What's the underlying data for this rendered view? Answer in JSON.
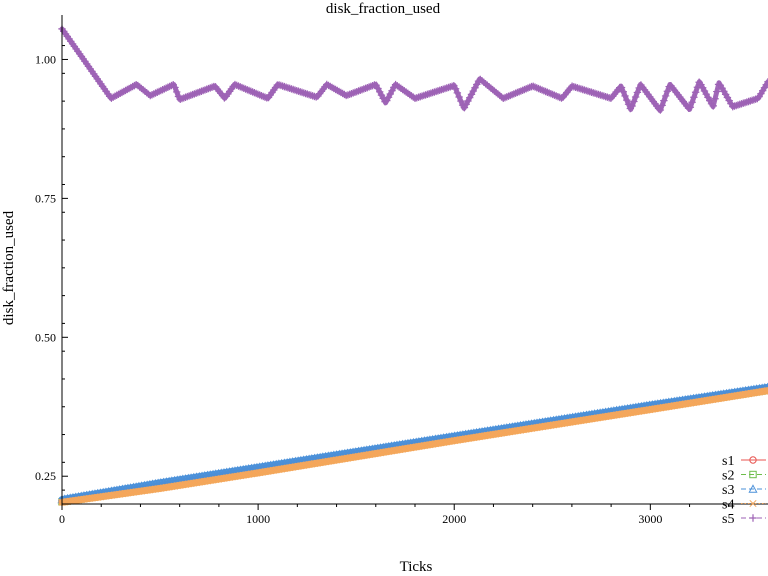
{
  "chart_data": {
    "type": "line",
    "title": "disk_fraction_used",
    "xlabel": "Ticks",
    "ylabel": "disk_fraction_used",
    "xlim": [
      0,
      3600
    ],
    "ylim": [
      0.2,
      1.08
    ],
    "xticks": [
      {
        "value": 0,
        "label": "0"
      },
      {
        "value": 1000,
        "label": "1000"
      },
      {
        "value": 2000,
        "label": "2000"
      },
      {
        "value": 3000,
        "label": "3000"
      }
    ],
    "yticks": [
      {
        "value": 0.25,
        "label": "0.25"
      },
      {
        "value": 0.5,
        "label": "0.50"
      },
      {
        "value": 0.75,
        "label": "0.75"
      },
      {
        "value": 1.0,
        "label": "1.00"
      }
    ],
    "grid": false,
    "legend_position": "bottom-right",
    "series": [
      {
        "name": "s1",
        "color": "#e8534f",
        "marker": "circle",
        "x": [
          0,
          500,
          1000,
          1500,
          2000,
          2500,
          3000,
          3600
        ],
        "y": [
          0.205,
          0.233,
          0.262,
          0.29,
          0.318,
          0.346,
          0.375,
          0.408
        ]
      },
      {
        "name": "s2",
        "color": "#6cbd4a",
        "marker": "square",
        "x": [
          0,
          500,
          1000,
          1500,
          2000,
          2500,
          3000,
          3600
        ],
        "y": [
          0.204,
          0.23,
          0.258,
          0.287,
          0.316,
          0.344,
          0.372,
          0.405
        ]
      },
      {
        "name": "s3",
        "color": "#4a90d9",
        "marker": "triangle",
        "x": [
          0,
          500,
          1000,
          1500,
          2000,
          2500,
          3000,
          3600
        ],
        "y": [
          0.208,
          0.238,
          0.266,
          0.294,
          0.322,
          0.35,
          0.378,
          0.41
        ]
      },
      {
        "name": "s4",
        "color": "#f5a75b",
        "marker": "x",
        "x": [
          0,
          500,
          1000,
          1500,
          2000,
          2500,
          3000,
          3600
        ],
        "y": [
          0.203,
          0.228,
          0.256,
          0.285,
          0.314,
          0.342,
          0.37,
          0.404
        ]
      },
      {
        "name": "s5",
        "color": "#9d62b5",
        "marker": "plus",
        "x": [
          0,
          250,
          380,
          450,
          570,
          600,
          780,
          830,
          880,
          1050,
          1100,
          1300,
          1350,
          1450,
          1600,
          1650,
          1700,
          1800,
          2000,
          2050,
          2130,
          2250,
          2400,
          2550,
          2600,
          2800,
          2850,
          2900,
          2950,
          3050,
          3100,
          3200,
          3250,
          3320,
          3350,
          3420,
          3550,
          3600
        ],
        "y": [
          1.055,
          0.93,
          0.955,
          0.935,
          0.955,
          0.928,
          0.952,
          0.93,
          0.955,
          0.93,
          0.955,
          0.932,
          0.955,
          0.935,
          0.955,
          0.922,
          0.955,
          0.93,
          0.953,
          0.912,
          0.965,
          0.93,
          0.952,
          0.93,
          0.952,
          0.93,
          0.952,
          0.91,
          0.955,
          0.908,
          0.955,
          0.91,
          0.96,
          0.915,
          0.958,
          0.915,
          0.93,
          0.96
        ]
      }
    ]
  }
}
